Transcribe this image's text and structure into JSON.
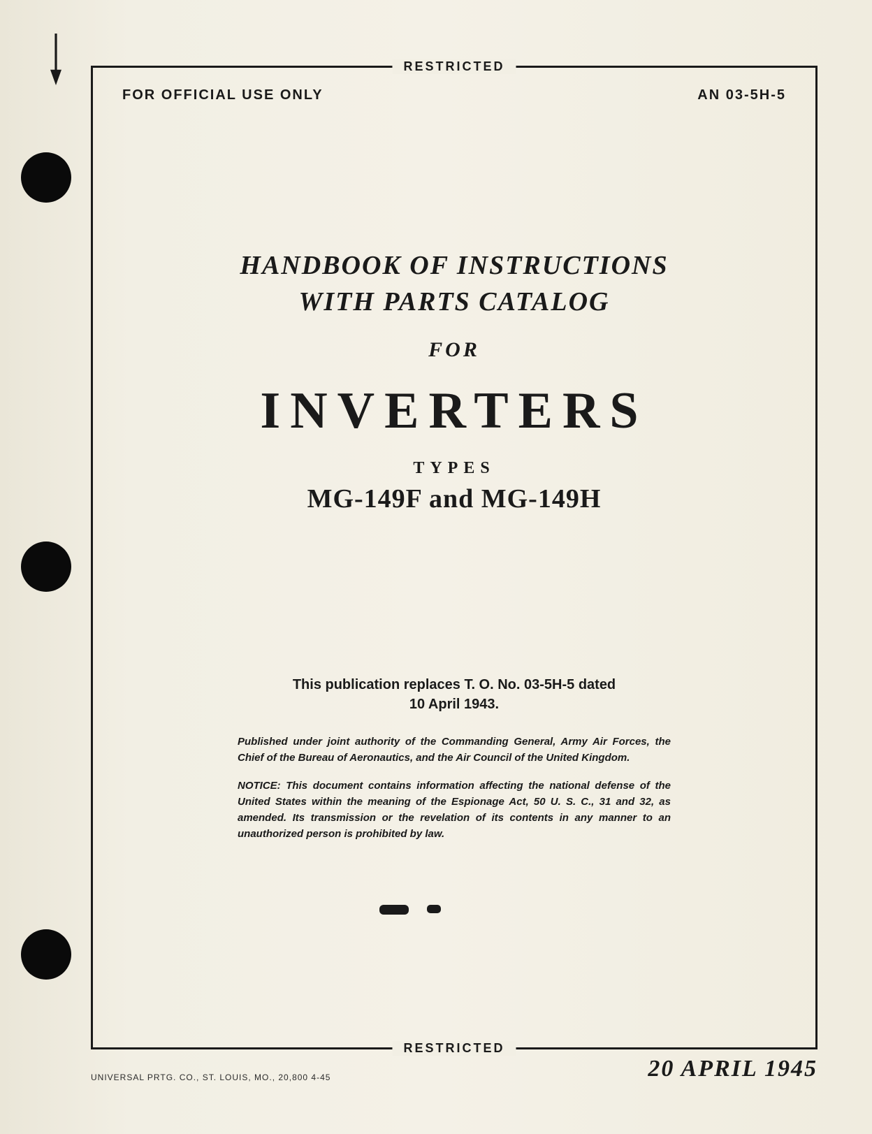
{
  "colors": {
    "page_bg": "#f2efe4",
    "ink": "#1a1a1a",
    "hole": "#0a0a0a"
  },
  "classification": {
    "top": "RESTRICTED",
    "bottom": "RESTRICTED"
  },
  "header": {
    "left": "FOR OFFICIAL USE ONLY",
    "right": "AN 03-5H-5"
  },
  "title": {
    "line1": "HANDBOOK OF INSTRUCTIONS",
    "line2": "WITH PARTS CATALOG",
    "for": "FOR",
    "main": "INVERTERS",
    "types_label": "TYPES",
    "models": "MG-149F and MG-149H"
  },
  "replaces": {
    "line1": "This publication replaces T. O. No. 03-5H-5 dated",
    "line2": "10 April 1943."
  },
  "fineprint": {
    "p1": "Published under joint authority of the Commanding General, Army Air Forces, the Chief of the Bureau of Aeronautics, and the Air Council of the United Kingdom.",
    "p2": "NOTICE: This document contains information affecting the national defense of the United States within the meaning of the Espionage Act, 50 U. S. C., 31 and 32, as amended. Its transmission or the revelation of its contents in any manner to an unauthorized person is prohibited by law."
  },
  "footer": {
    "printer": "UNIVERSAL PRTG. CO., ST. LOUIS, MO., 20,800 4-45",
    "date": "20 APRIL 1945"
  }
}
